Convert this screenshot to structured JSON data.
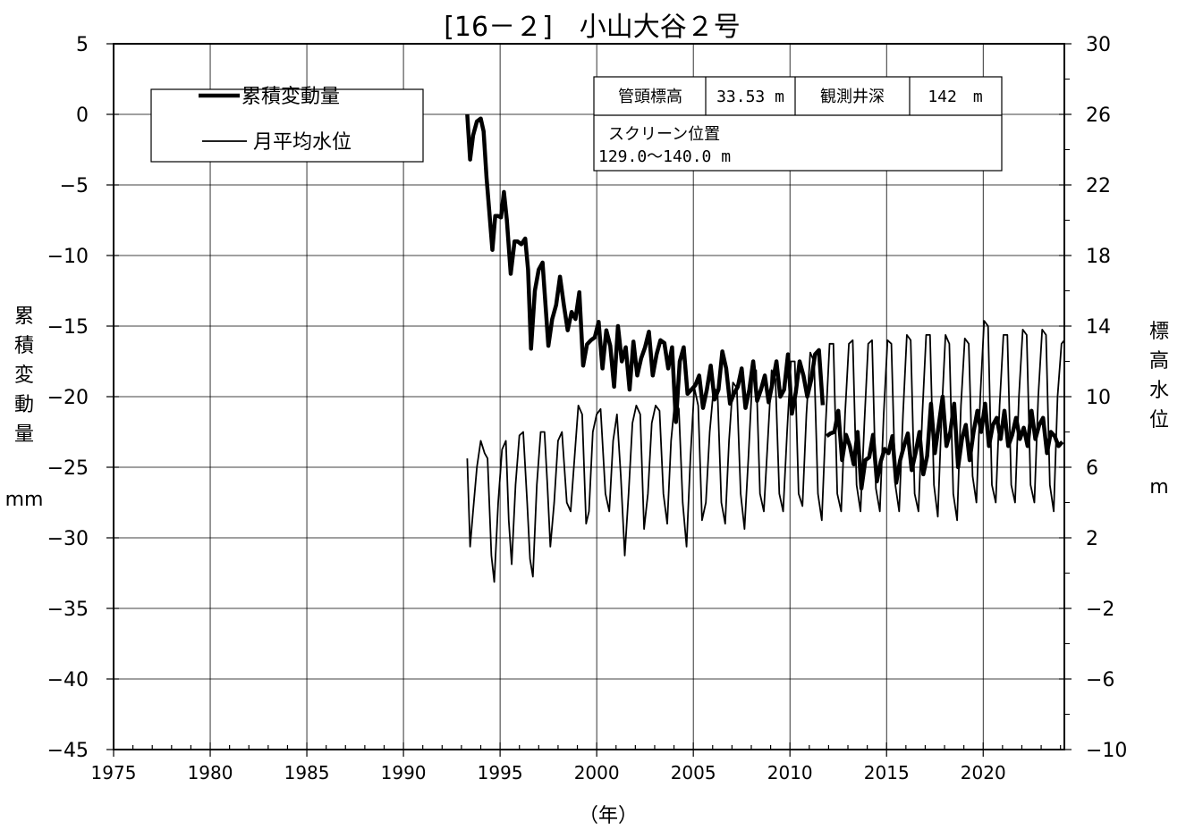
{
  "chart_data": {
    "type": "line",
    "title": "[16－２]　小山大谷２号",
    "xlabel": "（年）",
    "ylabel_left": [
      "累",
      "積",
      "変",
      "動",
      "量",
      "mm"
    ],
    "ylabel_right": [
      "標",
      "高",
      "水",
      "位",
      "m"
    ],
    "xlim": [
      1975,
      2024.2
    ],
    "ylim_left": [
      -45,
      5
    ],
    "ylim_right": [
      -10,
      30
    ],
    "x_ticks": [
      "1975",
      "1980",
      "1985",
      "1990",
      "1995",
      "2000",
      "2005",
      "2010",
      "2015",
      "2020"
    ],
    "y_left_ticks": [
      "5",
      "0",
      "−5",
      "−10",
      "−15",
      "−20",
      "−25",
      "−30",
      "−35",
      "−40",
      "−45"
    ],
    "y_right_ticks": [
      "30",
      "26",
      "22",
      "18",
      "14",
      "10",
      "6",
      "2",
      "−2",
      "−6",
      "−10"
    ],
    "grid": true,
    "legend_position": "top-left",
    "series": [
      {
        "name": "累積変動量",
        "axis": "left",
        "color": "#000000",
        "x": [
          1993.3,
          1993.45,
          1993.6,
          1993.8,
          1994.0,
          1994.15,
          1994.3,
          1994.45,
          1994.6,
          1994.75,
          1994.9,
          1995.05,
          1995.2,
          1995.35,
          1995.55,
          1995.75,
          1995.9,
          1996.1,
          1996.3,
          1996.45,
          1996.6,
          1996.8,
          1997.0,
          1997.2,
          1997.35,
          1997.5,
          1997.7,
          1997.9,
          1998.1,
          1998.3,
          1998.5,
          1998.7,
          1998.9,
          1999.1,
          1999.3,
          1999.5,
          1999.7,
          1999.9,
          2000.1,
          2000.3,
          2000.5,
          2000.7,
          2000.9,
          2001.1,
          2001.3,
          2001.5,
          2001.7,
          2001.9,
          2002.1,
          2002.3,
          2002.5,
          2002.7,
          2002.9,
          2003.1,
          2003.3,
          2003.5,
          2003.7,
          2003.9,
          2004.1,
          2004.3,
          2004.5,
          2004.7,
          2004.9,
          2005.1,
          2005.3,
          2005.5,
          2005.7,
          2005.9,
          2006.1,
          2006.3,
          2006.5,
          2006.7,
          2006.9,
          2007.1,
          2007.3,
          2007.5,
          2007.7,
          2007.9,
          2008.1,
          2008.3,
          2008.5,
          2008.7,
          2008.9,
          2009.1,
          2009.3,
          2009.5,
          2009.7,
          2009.9,
          2010.1,
          2010.3,
          2010.5,
          2010.7,
          2010.9,
          2011.1,
          2011.3,
          2011.5,
          2011.7
        ],
        "values": [
          0,
          -3.2,
          -1.5,
          -0.5,
          -0.3,
          -1.2,
          -4.5,
          -7.0,
          -9.6,
          -7.2,
          -7.2,
          -7.3,
          -5.5,
          -7.5,
          -11.3,
          -9.0,
          -9.0,
          -9.2,
          -8.8,
          -11.0,
          -16.6,
          -12.5,
          -11.0,
          -10.5,
          -13.5,
          -16.4,
          -14.5,
          -13.5,
          -11.5,
          -13.5,
          -15.3,
          -14.0,
          -14.5,
          -12.6,
          -17.8,
          -16.3,
          -16.0,
          -15.8,
          -14.7,
          -18.0,
          -15.3,
          -16.4,
          -19.3,
          -15.0,
          -17.5,
          -16.5,
          -19.5,
          -16.1,
          -18.5,
          -17.3,
          -16.5,
          -15.4,
          -18.5,
          -17.0,
          -16.0,
          -16.2,
          -18.0,
          -16.5,
          -21.8,
          -17.5,
          -16.5,
          -19.8,
          -19.5,
          -19.2,
          -18.5,
          -20.8,
          -19.5,
          -17.8,
          -20.2,
          -19.5,
          -16.8,
          -18.0,
          -20.5,
          -19.8,
          -19.3,
          -18.0,
          -20.8,
          -19.5,
          -17.5,
          -20.3,
          -19.5,
          -18.5,
          -20.4,
          -19.0,
          -17.5,
          -20.0,
          -19.5,
          -17.0,
          -21.2,
          -19.7,
          -17.5,
          -18.5,
          -20.0,
          -18.8,
          -17.0,
          -16.7,
          -20.6
        ]
      },
      {
        "name": "",
        "axis": "left",
        "color": "#000000",
        "x": [
          2011.9,
          2012.1,
          2012.3,
          2012.5,
          2012.7,
          2012.9,
          2013.1,
          2013.3,
          2013.5,
          2013.7,
          2013.9,
          2014.1,
          2014.3,
          2014.5,
          2014.7,
          2014.9,
          2015.1,
          2015.3,
          2015.5,
          2015.7,
          2015.9,
          2016.1,
          2016.3,
          2016.5,
          2016.7,
          2016.9,
          2017.1,
          2017.3,
          2017.5,
          2017.7,
          2017.9,
          2018.1,
          2018.3,
          2018.5,
          2018.7,
          2018.9,
          2019.1,
          2019.3,
          2019.5,
          2019.7,
          2019.9,
          2020.1,
          2020.3,
          2020.5,
          2020.7,
          2020.9,
          2021.1,
          2021.3,
          2021.5,
          2021.7,
          2021.9,
          2022.1,
          2022.3,
          2022.5,
          2022.7,
          2022.9,
          2023.1,
          2023.3,
          2023.5,
          2023.7,
          2023.9,
          2024.1
        ],
        "values": [
          -22.8,
          -22.6,
          -22.5,
          -21.0,
          -24.5,
          -22.7,
          -23.5,
          -24.8,
          -22.5,
          -26.5,
          -24.5,
          -24.3,
          -22.7,
          -26.0,
          -24.6,
          -23.7,
          -24.0,
          -22.8,
          -26.1,
          -24.5,
          -23.5,
          -22.6,
          -25.2,
          -24.0,
          -22.5,
          -25.5,
          -24.2,
          -20.5,
          -24.0,
          -22.0,
          -20.0,
          -23.5,
          -22.5,
          -20.5,
          -25.0,
          -23.0,
          -22.0,
          -24.5,
          -22.5,
          -21.0,
          -22.5,
          -20.5,
          -23.5,
          -22.0,
          -21.5,
          -23.0,
          -21.0,
          -23.5,
          -22.7,
          -21.5,
          -23.0,
          -22.2,
          -23.5,
          -21.0,
          -23.0,
          -22.0,
          -21.5,
          -24.0,
          -22.5,
          -22.8,
          -23.5,
          -23.2
        ]
      },
      {
        "name": "月平均水位",
        "axis": "right",
        "color": "#000000",
        "x": [
          1993.3,
          1993.45,
          1993.6,
          1993.8,
          1994.0,
          1994.2,
          1994.35,
          1994.55,
          1994.7,
          1994.9,
          1995.1,
          1995.3,
          1995.45,
          1995.6,
          1995.8,
          1996.0,
          1996.2,
          1996.4,
          1996.55,
          1996.7,
          1996.9,
          1997.1,
          1997.3,
          1997.45,
          1997.6,
          1997.8,
          1998.0,
          1998.2,
          1998.45,
          1998.65,
          1998.85,
          1999.05,
          1999.25,
          1999.45,
          1999.6,
          1999.8,
          2000.0,
          2000.2,
          2000.45,
          2000.65,
          2000.85,
          2001.05,
          2001.25,
          2001.45,
          2001.65,
          2001.85,
          2002.05,
          2002.25,
          2002.45,
          2002.65,
          2002.85,
          2003.05,
          2003.25,
          2003.45,
          2003.65,
          2003.85,
          2004.05,
          2004.25,
          2004.45,
          2004.65,
          2004.85,
          2005.05,
          2005.25,
          2005.45,
          2005.65,
          2005.85,
          2006.05,
          2006.25,
          2006.45,
          2006.65,
          2006.85,
          2007.05,
          2007.25,
          2007.45,
          2007.65,
          2007.85,
          2008.05,
          2008.25,
          2008.45,
          2008.65,
          2008.85,
          2009.05,
          2009.25,
          2009.45,
          2009.65,
          2009.85,
          2010.05,
          2010.25,
          2010.45,
          2010.65,
          2010.85,
          2011.05,
          2011.25,
          2011.45,
          2011.65,
          2011.85,
          2012.05,
          2012.25,
          2012.45,
          2012.65,
          2012.85,
          2013.05,
          2013.25,
          2013.45,
          2013.65,
          2013.85,
          2014.05,
          2014.25,
          2014.45,
          2014.65,
          2014.85,
          2015.05,
          2015.25,
          2015.45,
          2015.65,
          2015.85,
          2016.05,
          2016.25,
          2016.45,
          2016.65,
          2016.85,
          2017.05,
          2017.25,
          2017.45,
          2017.65,
          2017.85,
          2018.05,
          2018.25,
          2018.45,
          2018.65,
          2018.85,
          2019.05,
          2019.25,
          2019.45,
          2019.65,
          2019.85,
          2020.05,
          2020.25,
          2020.45,
          2020.65,
          2020.85,
          2021.05,
          2021.25,
          2021.45,
          2021.65,
          2021.85,
          2022.05,
          2022.25,
          2022.45,
          2022.65,
          2022.85,
          2023.05,
          2023.25,
          2023.45,
          2023.65,
          2023.85,
          2024.05,
          2024.2
        ],
        "values": [
          6.5,
          1.5,
          3.5,
          6.0,
          7.5,
          6.8,
          6.5,
          1.0,
          -0.5,
          4.0,
          7.0,
          7.5,
          3.0,
          0.5,
          5.0,
          7.8,
          8.0,
          4.0,
          0.8,
          -0.2,
          5.0,
          8.0,
          8.0,
          5.0,
          1.5,
          4.0,
          7.5,
          8.0,
          4.0,
          3.5,
          6.5,
          9.5,
          9.0,
          2.8,
          3.5,
          8.0,
          9.0,
          9.3,
          4.5,
          3.5,
          7.5,
          9.0,
          5.5,
          1.0,
          4.5,
          8.5,
          9.5,
          9.0,
          2.5,
          4.5,
          8.5,
          9.5,
          9.2,
          4.5,
          2.8,
          7.5,
          9.8,
          9.3,
          4.0,
          1.5,
          6.5,
          10.5,
          9.5,
          3.0,
          4.0,
          8.0,
          10.5,
          10.3,
          4.0,
          2.8,
          7.5,
          10.8,
          10.5,
          4.5,
          2.5,
          6.5,
          11.0,
          11.5,
          4.5,
          3.5,
          7.5,
          11.5,
          11.0,
          4.5,
          3.5,
          8.0,
          12.0,
          12.0,
          4.5,
          3.8,
          9.0,
          12.5,
          12.0,
          4.5,
          3.0,
          8.5,
          13.0,
          13.0,
          4.5,
          3.5,
          9.0,
          13.0,
          13.2,
          5.0,
          3.5,
          8.5,
          13.0,
          13.2,
          4.8,
          3.5,
          9.0,
          13.2,
          13.0,
          5.0,
          3.5,
          9.0,
          13.5,
          13.2,
          4.5,
          3.5,
          9.0,
          13.5,
          13.5,
          5.0,
          3.2,
          9.0,
          13.5,
          13.0,
          4.5,
          3.0,
          9.5,
          13.3,
          13.0,
          5.5,
          4.0,
          10.0,
          14.3,
          14.0,
          5.0,
          4.0,
          9.5,
          13.5,
          13.5,
          5.0,
          4.0,
          10.0,
          13.8,
          13.5,
          5.0,
          4.0,
          10.0,
          13.8,
          13.5,
          5.0,
          3.5,
          10.0,
          13.0,
          13.2
        ]
      }
    ],
    "info_box": {
      "head_label": "管頭標高",
      "head_value": "33.53 m",
      "depth_label": "観測井深",
      "depth_value": "142　m",
      "screen_label": "スクリーン位置",
      "screen_value": "129.0～140.0 m"
    }
  }
}
